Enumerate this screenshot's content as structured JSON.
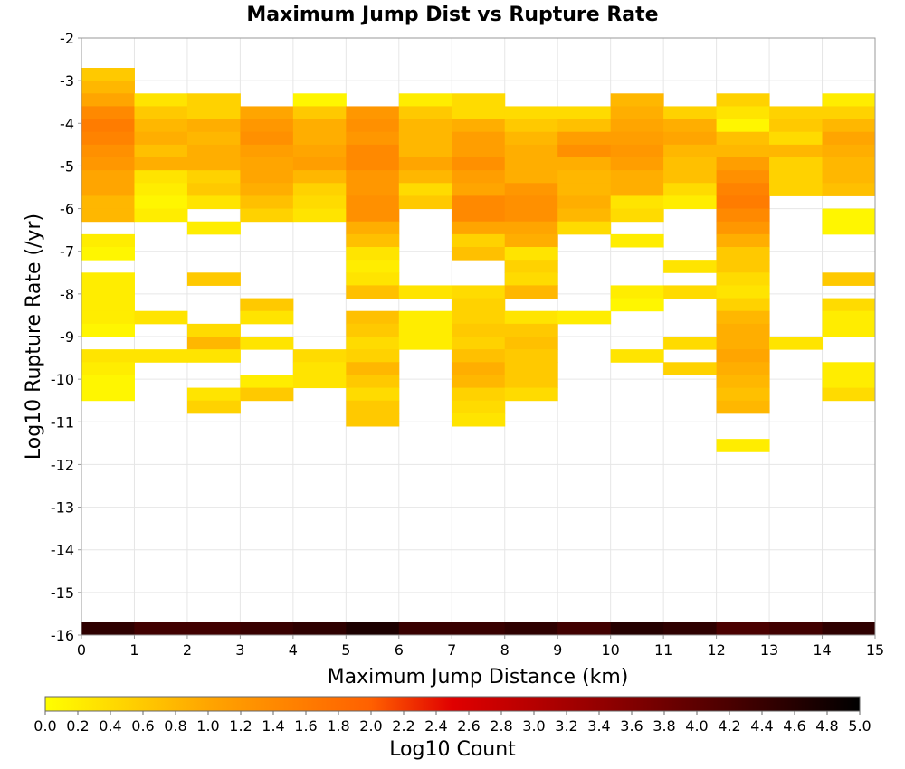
{
  "chart_data": {
    "type": "heatmap",
    "title": "Maximum Jump Dist vs Rupture Rate",
    "xlabel": "Maximum Jump Distance (km)",
    "ylabel": "Log10 Rupture Rate (/yr)",
    "xlim": [
      0,
      15
    ],
    "ylim": [
      -16,
      -2
    ],
    "x_ticks": [
      0,
      1,
      2,
      3,
      4,
      5,
      6,
      7,
      8,
      9,
      10,
      11,
      12,
      13,
      14,
      15
    ],
    "y_ticks": [
      -2,
      -3,
      -4,
      -5,
      -6,
      -7,
      -8,
      -9,
      -10,
      -11,
      -12,
      -13,
      -14,
      -15,
      -16
    ],
    "x_bin_width": 1,
    "y_bin_height": 0.3,
    "grid": true,
    "colorbar": {
      "label": "Log10 Count",
      "range": [
        0,
        5
      ],
      "ticks": [
        "0.0",
        "0.2",
        "0.4",
        "0.6",
        "0.8",
        "1.0",
        "1.2",
        "1.4",
        "1.6",
        "1.8",
        "2.0",
        "2.2",
        "2.4",
        "2.6",
        "2.8",
        "3.0",
        "3.2",
        "3.4",
        "3.6",
        "3.8",
        "4.0",
        "4.2",
        "4.4",
        "4.6",
        "4.8",
        "5.0"
      ],
      "colormap": [
        "#ffff00",
        "#ffa500",
        "#ff6000",
        "#e00000",
        "#8b0000",
        "#000000"
      ]
    },
    "columns": [
      {
        "x": 0,
        "cells": [
          [
            -3.0,
            0.6
          ],
          [
            -3.3,
            0.8
          ],
          [
            -3.6,
            1.0
          ],
          [
            -3.9,
            1.4
          ],
          [
            -4.2,
            1.6
          ],
          [
            -4.5,
            1.5
          ],
          [
            -4.8,
            1.3
          ],
          [
            -5.1,
            1.2
          ],
          [
            -5.4,
            1.0
          ],
          [
            -5.7,
            1.0
          ],
          [
            -6.0,
            0.8
          ],
          [
            -6.3,
            0.8
          ],
          [
            -6.9,
            0.2
          ],
          [
            -7.2,
            0.1
          ],
          [
            -7.8,
            0.2
          ],
          [
            -8.1,
            0.2
          ],
          [
            -8.4,
            0.2
          ],
          [
            -8.7,
            0.2
          ],
          [
            -9.0,
            0.1
          ],
          [
            -9.6,
            0.3
          ],
          [
            -9.9,
            0.2
          ],
          [
            -10.2,
            0.1
          ],
          [
            -10.5,
            0.1
          ],
          [
            -16.0,
            4.5
          ]
        ]
      },
      {
        "x": 1,
        "cells": [
          [
            -3.6,
            0.3
          ],
          [
            -3.9,
            0.6
          ],
          [
            -4.2,
            0.8
          ],
          [
            -4.5,
            0.9
          ],
          [
            -4.8,
            0.7
          ],
          [
            -5.1,
            0.9
          ],
          [
            -5.4,
            0.3
          ],
          [
            -5.7,
            0.2
          ],
          [
            -6.0,
            0.1
          ],
          [
            -6.3,
            0.2
          ],
          [
            -8.7,
            0.3
          ],
          [
            -9.6,
            0.3
          ],
          [
            -16.0,
            4.3
          ]
        ]
      },
      {
        "x": 2,
        "cells": [
          [
            -3.6,
            0.5
          ],
          [
            -3.9,
            0.5
          ],
          [
            -4.2,
            0.9
          ],
          [
            -4.5,
            0.8
          ],
          [
            -4.8,
            0.9
          ],
          [
            -5.1,
            0.9
          ],
          [
            -5.4,
            0.5
          ],
          [
            -5.7,
            0.6
          ],
          [
            -6.0,
            0.3
          ],
          [
            -6.6,
            0.2
          ],
          [
            -7.8,
            0.6
          ],
          [
            -9.0,
            0.4
          ],
          [
            -9.3,
            0.8
          ],
          [
            -9.6,
            0.3
          ],
          [
            -10.5,
            0.3
          ],
          [
            -10.8,
            0.5
          ],
          [
            -16.0,
            4.3
          ]
        ]
      },
      {
        "x": 3,
        "cells": [
          [
            -3.9,
            1.0
          ],
          [
            -4.2,
            1.2
          ],
          [
            -4.5,
            1.3
          ],
          [
            -4.8,
            1.1
          ],
          [
            -5.1,
            1.0
          ],
          [
            -5.4,
            1.0
          ],
          [
            -5.7,
            0.9
          ],
          [
            -6.0,
            0.7
          ],
          [
            -6.3,
            0.5
          ],
          [
            -8.4,
            0.6
          ],
          [
            -8.7,
            0.3
          ],
          [
            -9.3,
            0.3
          ],
          [
            -10.2,
            0.2
          ],
          [
            -10.5,
            0.6
          ],
          [
            -16.0,
            4.4
          ]
        ]
      },
      {
        "x": 4,
        "cells": [
          [
            -3.6,
            0.1
          ],
          [
            -3.9,
            0.6
          ],
          [
            -4.2,
            0.9
          ],
          [
            -4.5,
            0.9
          ],
          [
            -4.8,
            1.0
          ],
          [
            -5.1,
            1.1
          ],
          [
            -5.4,
            0.8
          ],
          [
            -5.7,
            0.5
          ],
          [
            -6.0,
            0.4
          ],
          [
            -6.3,
            0.3
          ],
          [
            -9.6,
            0.4
          ],
          [
            -9.9,
            0.3
          ],
          [
            -10.2,
            0.3
          ],
          [
            -16.0,
            4.5
          ]
        ]
      },
      {
        "x": 5,
        "cells": [
          [
            -3.9,
            1.2
          ],
          [
            -4.2,
            1.3
          ],
          [
            -4.5,
            1.2
          ],
          [
            -4.8,
            1.4
          ],
          [
            -5.1,
            1.4
          ],
          [
            -5.4,
            1.2
          ],
          [
            -5.7,
            1.2
          ],
          [
            -6.0,
            1.3
          ],
          [
            -6.3,
            1.3
          ],
          [
            -6.6,
            0.9
          ],
          [
            -6.9,
            0.7
          ],
          [
            -7.2,
            0.3
          ],
          [
            -7.5,
            0.2
          ],
          [
            -7.8,
            0.3
          ],
          [
            -8.1,
            0.7
          ],
          [
            -8.7,
            0.7
          ],
          [
            -9.0,
            0.6
          ],
          [
            -9.3,
            0.4
          ],
          [
            -9.6,
            0.5
          ],
          [
            -9.9,
            0.8
          ],
          [
            -10.2,
            0.6
          ],
          [
            -10.5,
            0.4
          ],
          [
            -10.8,
            0.6
          ],
          [
            -11.1,
            0.6
          ],
          [
            -16.0,
            4.7
          ]
        ]
      },
      {
        "x": 6,
        "cells": [
          [
            -3.6,
            0.2
          ],
          [
            -3.9,
            0.6
          ],
          [
            -4.2,
            0.8
          ],
          [
            -4.5,
            0.8
          ],
          [
            -4.8,
            0.8
          ],
          [
            -5.1,
            1.0
          ],
          [
            -5.4,
            0.8
          ],
          [
            -5.7,
            0.4
          ],
          [
            -6.0,
            0.6
          ],
          [
            -8.1,
            0.3
          ],
          [
            -8.7,
            0.2
          ],
          [
            -9.0,
            0.2
          ],
          [
            -9.3,
            0.2
          ],
          [
            -16.0,
            4.4
          ]
        ]
      },
      {
        "x": 7,
        "cells": [
          [
            -3.6,
            0.4
          ],
          [
            -3.9,
            0.4
          ],
          [
            -4.2,
            0.9
          ],
          [
            -4.5,
            1.1
          ],
          [
            -4.8,
            1.1
          ],
          [
            -5.1,
            1.3
          ],
          [
            -5.4,
            1.1
          ],
          [
            -5.7,
            1.0
          ],
          [
            -6.0,
            1.4
          ],
          [
            -6.3,
            1.4
          ],
          [
            -6.6,
            1.0
          ],
          [
            -6.9,
            0.5
          ],
          [
            -7.2,
            0.7
          ],
          [
            -8.1,
            0.4
          ],
          [
            -8.4,
            0.5
          ],
          [
            -8.7,
            0.5
          ],
          [
            -9.0,
            0.6
          ],
          [
            -9.3,
            0.5
          ],
          [
            -9.6,
            0.7
          ],
          [
            -9.9,
            0.9
          ],
          [
            -10.2,
            0.8
          ],
          [
            -10.5,
            0.5
          ],
          [
            -10.8,
            0.4
          ],
          [
            -11.1,
            0.3
          ],
          [
            -16.0,
            4.4
          ]
        ]
      },
      {
        "x": 8,
        "cells": [
          [
            -3.9,
            0.4
          ],
          [
            -4.2,
            0.6
          ],
          [
            -4.5,
            0.8
          ],
          [
            -4.8,
            0.9
          ],
          [
            -5.1,
            0.9
          ],
          [
            -5.4,
            0.9
          ],
          [
            -5.7,
            1.2
          ],
          [
            -6.0,
            1.3
          ],
          [
            -6.3,
            1.3
          ],
          [
            -6.6,
            1.0
          ],
          [
            -6.9,
            0.9
          ],
          [
            -7.2,
            0.3
          ],
          [
            -7.5,
            0.5
          ],
          [
            -7.8,
            0.4
          ],
          [
            -8.1,
            0.8
          ],
          [
            -8.7,
            0.3
          ],
          [
            -9.0,
            0.6
          ],
          [
            -9.3,
            0.7
          ],
          [
            -9.6,
            0.6
          ],
          [
            -9.9,
            0.6
          ],
          [
            -10.2,
            0.6
          ],
          [
            -10.5,
            0.4
          ],
          [
            -16.0,
            4.5
          ]
        ]
      },
      {
        "x": 9,
        "cells": [
          [
            -3.9,
            0.4
          ],
          [
            -4.2,
            0.7
          ],
          [
            -4.5,
            1.1
          ],
          [
            -4.8,
            1.3
          ],
          [
            -5.1,
            0.9
          ],
          [
            -5.4,
            0.8
          ],
          [
            -5.7,
            0.8
          ],
          [
            -6.0,
            0.9
          ],
          [
            -6.3,
            0.8
          ],
          [
            -6.6,
            0.4
          ],
          [
            -8.7,
            0.2
          ],
          [
            -16.0,
            4.3
          ]
        ]
      },
      {
        "x": 10,
        "cells": [
          [
            -3.6,
            0.8
          ],
          [
            -3.9,
            0.9
          ],
          [
            -4.2,
            1.0
          ],
          [
            -4.5,
            1.1
          ],
          [
            -4.8,
            1.2
          ],
          [
            -5.1,
            1.1
          ],
          [
            -5.4,
            0.9
          ],
          [
            -5.7,
            0.9
          ],
          [
            -6.0,
            0.3
          ],
          [
            -6.3,
            0.4
          ],
          [
            -6.9,
            0.2
          ],
          [
            -8.1,
            0.2
          ],
          [
            -8.4,
            0.1
          ],
          [
            -9.6,
            0.3
          ],
          [
            -16.0,
            4.6
          ]
        ]
      },
      {
        "x": 11,
        "cells": [
          [
            -3.9,
            0.5
          ],
          [
            -4.2,
            0.9
          ],
          [
            -4.5,
            1.0
          ],
          [
            -4.8,
            0.8
          ],
          [
            -5.1,
            0.7
          ],
          [
            -5.4,
            0.7
          ],
          [
            -5.7,
            0.4
          ],
          [
            -6.0,
            0.2
          ],
          [
            -7.5,
            0.3
          ],
          [
            -8.1,
            0.4
          ],
          [
            -9.3,
            0.4
          ],
          [
            -9.9,
            0.5
          ],
          [
            -16.0,
            4.5
          ]
        ]
      },
      {
        "x": 12,
        "cells": [
          [
            -3.6,
            0.5
          ],
          [
            -3.9,
            0.3
          ],
          [
            -4.2,
            0.1
          ],
          [
            -4.5,
            0.7
          ],
          [
            -4.8,
            0.8
          ],
          [
            -5.1,
            1.1
          ],
          [
            -5.4,
            1.3
          ],
          [
            -5.7,
            1.5
          ],
          [
            -6.0,
            1.6
          ],
          [
            -6.3,
            1.4
          ],
          [
            -6.6,
            1.2
          ],
          [
            -6.9,
            0.9
          ],
          [
            -7.2,
            0.6
          ],
          [
            -7.5,
            0.6
          ],
          [
            -7.8,
            0.4
          ],
          [
            -8.1,
            0.3
          ],
          [
            -8.4,
            0.5
          ],
          [
            -8.7,
            0.8
          ],
          [
            -9.0,
            0.9
          ],
          [
            -9.3,
            0.9
          ],
          [
            -9.6,
            1.0
          ],
          [
            -9.9,
            0.9
          ],
          [
            -10.2,
            0.8
          ],
          [
            -10.5,
            0.7
          ],
          [
            -10.8,
            0.8
          ],
          [
            -11.7,
            0.2
          ],
          [
            -16.0,
            4.2
          ]
        ]
      },
      {
        "x": 13,
        "cells": [
          [
            -3.9,
            0.5
          ],
          [
            -4.2,
            0.6
          ],
          [
            -4.5,
            0.4
          ],
          [
            -4.8,
            0.8
          ],
          [
            -5.1,
            0.5
          ],
          [
            -5.4,
            0.5
          ],
          [
            -5.7,
            0.5
          ],
          [
            -9.3,
            0.3
          ],
          [
            -16.0,
            4.3
          ]
        ]
      },
      {
        "x": 14,
        "cells": [
          [
            -3.6,
            0.2
          ],
          [
            -3.9,
            0.5
          ],
          [
            -4.2,
            0.8
          ],
          [
            -4.5,
            1.0
          ],
          [
            -4.8,
            0.9
          ],
          [
            -5.1,
            0.8
          ],
          [
            -5.4,
            0.8
          ],
          [
            -5.7,
            0.7
          ],
          [
            -6.3,
            0.1
          ],
          [
            -6.6,
            0.1
          ],
          [
            -7.8,
            0.6
          ],
          [
            -8.4,
            0.4
          ],
          [
            -8.7,
            0.2
          ],
          [
            -9.0,
            0.2
          ],
          [
            -9.9,
            0.2
          ],
          [
            -10.2,
            0.2
          ],
          [
            -10.5,
            0.4
          ],
          [
            -16.0,
            4.5
          ]
        ]
      }
    ]
  }
}
